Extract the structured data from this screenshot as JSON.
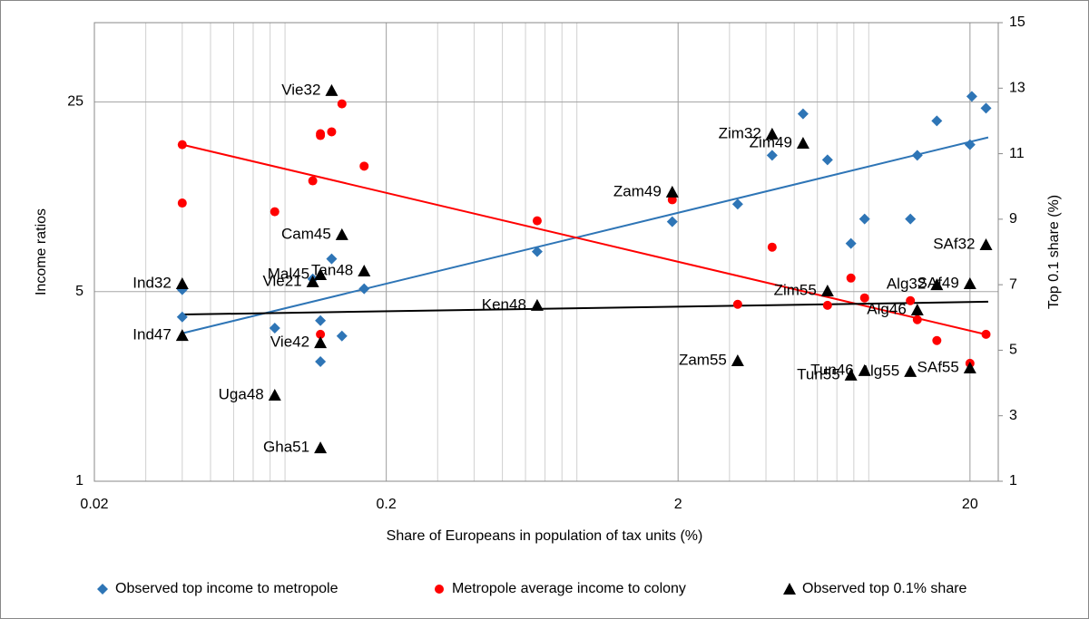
{
  "chart_data": {
    "type": "scatter",
    "xlabel": "Share of Europeans in population of tax units (%)",
    "ylabel": "Income ratios",
    "y2label": "Top 0.1 share (%)",
    "xscale": "log",
    "yscale": "log",
    "xlim": [
      0.02,
      25
    ],
    "ylim": [
      1,
      49
    ],
    "xticks": [
      0.02,
      0.2,
      2,
      20
    ],
    "yticks": [
      1,
      5,
      25
    ],
    "y2lim": [
      1,
      15
    ],
    "y2ticks": [
      1,
      3,
      5,
      7,
      9,
      11,
      13,
      15
    ],
    "grid": true,
    "legend": "bottom",
    "series": [
      {
        "name": "Observed top income to metropole",
        "color": "#2e75b6",
        "marker": "diamond",
        "axis": "y",
        "x": [
          0.04,
          0.04,
          0.083,
          0.112,
          0.119,
          0.119,
          0.13,
          0.141,
          0.168,
          0.658,
          1.91,
          3.2,
          4.2,
          5.36,
          6.5,
          7.82,
          8.71,
          12.5,
          13.2,
          15.4,
          20.0,
          20.3,
          22.7
        ],
        "values": [
          4.03,
          5.08,
          3.67,
          5.57,
          3.91,
          2.76,
          6.6,
          3.43,
          5.12,
          7.02,
          9.05,
          10.5,
          15.9,
          22.6,
          15.3,
          7.52,
          9.26,
          9.26,
          15.9,
          21.3,
          17.4,
          26.2,
          23.7
        ]
      },
      {
        "name": "Metropole average income to colony",
        "color": "#ff0000",
        "marker": "circle",
        "axis": "y",
        "x": [
          0.04,
          0.04,
          0.083,
          0.112,
          0.119,
          0.119,
          0.119,
          0.13,
          0.141,
          0.168,
          0.658,
          1.91,
          3.2,
          4.2,
          6.5,
          7.82,
          8.71,
          12.5,
          13.2,
          15.4,
          20.0,
          22.7
        ],
        "values": [
          17.4,
          10.6,
          9.85,
          12.8,
          18.8,
          19.1,
          3.48,
          19.4,
          24.6,
          14.5,
          9.12,
          10.9,
          4.49,
          7.29,
          4.45,
          5.61,
          4.74,
          4.63,
          3.94,
          3.3,
          2.72,
          3.48
        ]
      },
      {
        "name": "Observed top 0.1% share",
        "color": "#000000",
        "marker": "triangle",
        "axis": "y2",
        "labels": [
          "Ind32",
          "Ind47",
          "Uga48",
          "Vie21",
          "Mal45",
          "Tan48",
          "Cam45",
          "Vie32",
          "Vie42",
          "Gha51",
          "Ken48",
          "Zam49",
          "Zam55",
          "Zim32",
          "Zim49",
          "Zim55",
          "Alg32",
          "Alg46",
          "SAf49",
          "SAf32",
          "SAf55",
          "Tun46",
          "Tun55",
          "Alg55"
        ],
        "x": [
          0.04,
          0.04,
          0.083,
          0.112,
          0.119,
          0.168,
          0.141,
          0.13,
          0.119,
          0.119,
          0.658,
          1.91,
          3.2,
          4.2,
          5.36,
          6.5,
          15.4,
          13.2,
          20.0,
          22.7,
          20.0,
          8.71,
          7.82,
          12.5
        ],
        "values": [
          7.03,
          5.45,
          3.63,
          7.09,
          7.31,
          7.42,
          8.53,
          12.93,
          5.23,
          2.02,
          6.37,
          9.83,
          4.68,
          11.6,
          11.32,
          6.81,
          7.0,
          6.23,
          7.03,
          8.22,
          4.46,
          4.38,
          4.24,
          4.35
        ]
      }
    ],
    "trendlines": [
      {
        "color": "#2e75b6",
        "axis": "y",
        "x": [
          0.04,
          23.1
        ],
        "values": [
          3.51,
          18.5
        ]
      },
      {
        "color": "#ff0000",
        "axis": "y",
        "x": [
          0.04,
          23.1
        ],
        "values": [
          17.4,
          3.46
        ]
      },
      {
        "color": "#000000",
        "axis": "y2",
        "x": [
          0.04,
          23.1
        ],
        "values": [
          6.09,
          6.48
        ]
      }
    ]
  }
}
